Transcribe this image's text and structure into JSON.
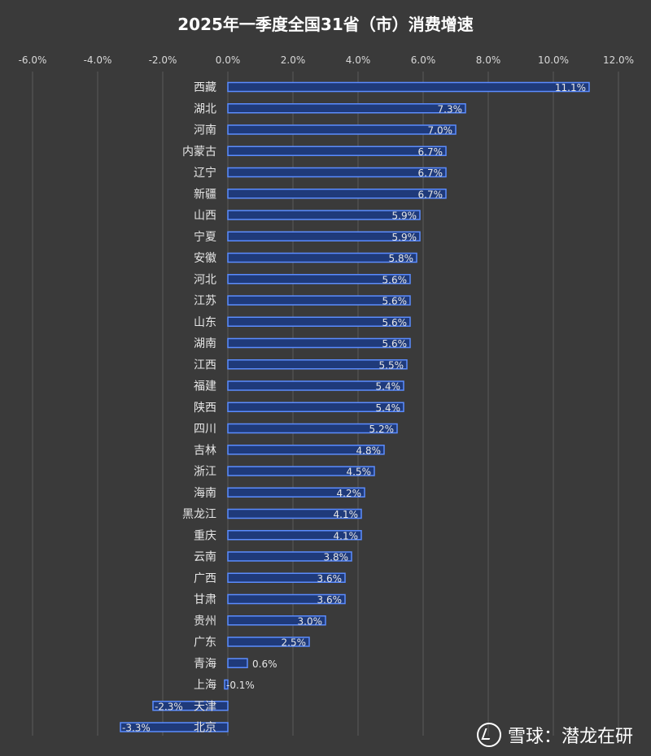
{
  "title": "2025年一季度全国31省（市）消费增速",
  "watermark": "雪球：潜龙在研",
  "colors": {
    "background": "#3a3a3a",
    "bar_fill": "#1f3a7a",
    "bar_stroke": "#5b8cff",
    "text": "#e6e6e6"
  },
  "chart_data": {
    "type": "bar",
    "orientation": "horizontal",
    "title": "2025年一季度全国31省（市）消费增速",
    "x_axis_position": "top",
    "xlim": [
      -6,
      12
    ],
    "xticks": [
      -6,
      -4,
      -2,
      0,
      2,
      4,
      6,
      8,
      10,
      12
    ],
    "xtick_labels": [
      "-6.0%",
      "-4.0%",
      "-2.0%",
      "0.0%",
      "2.0%",
      "4.0%",
      "6.0%",
      "8.0%",
      "10.0%",
      "12.0%"
    ],
    "grid": true,
    "categories": [
      "西藏",
      "湖北",
      "河南",
      "内蒙古",
      "辽宁",
      "新疆",
      "山西",
      "宁夏",
      "安徽",
      "河北",
      "江苏",
      "山东",
      "湖南",
      "江西",
      "福建",
      "陕西",
      "四川",
      "吉林",
      "浙江",
      "海南",
      "黑龙江",
      "重庆",
      "云南",
      "广西",
      "甘肃",
      "贵州",
      "广东",
      "青海",
      "上海",
      "天津",
      "北京"
    ],
    "values": [
      11.1,
      7.3,
      7.0,
      6.7,
      6.7,
      6.7,
      5.9,
      5.9,
      5.8,
      5.6,
      5.6,
      5.6,
      5.6,
      5.5,
      5.4,
      5.4,
      5.2,
      4.8,
      4.5,
      4.2,
      4.1,
      4.1,
      3.8,
      3.6,
      3.6,
      3.0,
      2.5,
      0.6,
      -0.1,
      -2.3,
      -3.3
    ],
    "value_labels": [
      "11.1%",
      "7.3%",
      "7.0%",
      "6.7%",
      "6.7%",
      "6.7%",
      "5.9%",
      "5.9%",
      "5.8%",
      "5.6%",
      "5.6%",
      "5.6%",
      "5.6%",
      "5.5%",
      "5.4%",
      "5.4%",
      "5.2%",
      "4.8%",
      "4.5%",
      "4.2%",
      "4.1%",
      "4.1%",
      "3.8%",
      "3.6%",
      "3.6%",
      "3.0%",
      "2.5%",
      "0.6%",
      "-0.1%",
      "-2.3%",
      "-3.3%"
    ]
  }
}
